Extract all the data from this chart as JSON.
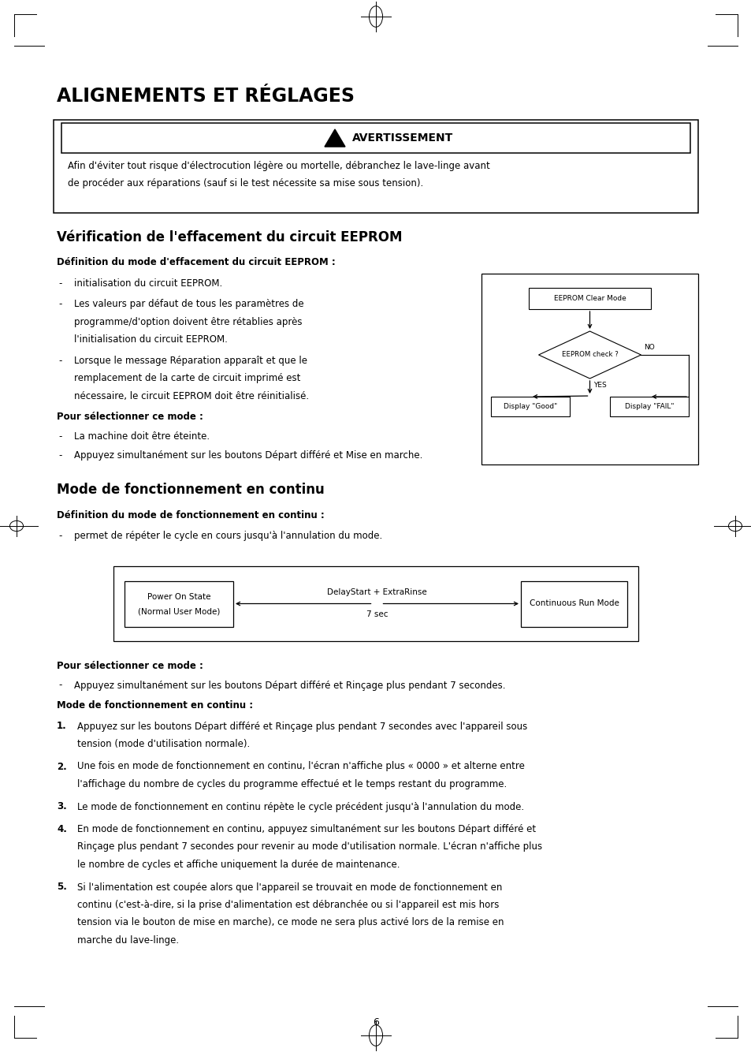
{
  "page_bg": "#ffffff",
  "page_width": 9.54,
  "page_height": 13.34,
  "ml": 0.72,
  "mr": 0.72,
  "title": "ALIGNEMENTS ET RÉGLAGES",
  "warning_box_text": "AVERTISSEMENT",
  "warning_body_1": "Afin d'éviter tout risque d'électrocution légère ou mortelle, débranchez le lave-linge avant",
  "warning_body_2": "de procéder aux réparations (sauf si le test nécessite sa mise sous tension).",
  "section1_title": "Vérification de l'effacement du circuit EEPROM",
  "section1_sub1": "Définition du mode d'effacement du circuit EEPROM :",
  "section1_b1": "initialisation du circuit EEPROM.",
  "section1_b2a": "Les valeurs par défaut de tous les paramètres de",
  "section1_b2b": "programme/d'option doivent être rétablies après",
  "section1_b2c": "l'initialisation du circuit EEPROM.",
  "section1_b3a": "Lorsque le message Réparation apparaît et que le",
  "section1_b3b": "remplacement de la carte de circuit imprimé est",
  "section1_b3c": "nécessaire, le circuit EEPROM doit être réinitialisé.",
  "section1_sub2": "Pour sélectionner ce mode :",
  "section1_c1": "La machine doit être éteinte.",
  "section1_c2": "Appuyez simultanément sur les boutons Départ différé et Mise en marche.",
  "eeprom_box1": "EEPROM Clear Mode",
  "eeprom_diamond": "EEPROM check ?",
  "eeprom_no": "NO",
  "eeprom_yes": "YES",
  "eeprom_good": "Display \"Good\"",
  "eeprom_fail": "Display \"FAIL\"",
  "section2_title": "Mode de fonctionnement en continu",
  "section2_sub1": "Définition du mode de fonctionnement en continu :",
  "section2_b1": "permet de répéter le cycle en cours jusqu'à l'annulation du mode.",
  "flow_left": "Power On State\n(Normal User Mode)",
  "flow_mid1": "DelayStart + ExtraRinse",
  "flow_mid2": "7 sec",
  "flow_right": "Continuous Run Mode",
  "section2_sub2": "Pour sélectionner ce mode :",
  "section2_c1": "Appuyez simultanément sur les boutons Départ différé et Rinçage plus pendant 7 secondes.",
  "section2_sub3": "Mode de fonctionnement en continu :",
  "n1a": "Appuyez sur les boutons Départ différé et Rinçage plus pendant 7 secondes avec l'appareil sous",
  "n1b": "tension (mode d'utilisation normale).",
  "n2a": "Une fois en mode de fonctionnement en continu, l'écran n'affiche plus « 0000 » et alterne entre",
  "n2b": "l'affichage du nombre de cycles du programme effectué et le temps restant du programme.",
  "n3": "Le mode de fonctionnement en continu répète le cycle précédent jusqu'à l'annulation du mode.",
  "n4a": "En mode de fonctionnement en continu, appuyez simultanément sur les boutons Départ différé et",
  "n4b": "Rinçage plus pendant 7 secondes pour revenir au mode d'utilisation normale. L'écran n'affiche plus",
  "n4c": "le nombre de cycles et affiche uniquement la durée de maintenance.",
  "n5a": "Si l'alimentation est coupée alors que l'appareil se trouvait en mode de fonctionnement en",
  "n5b": "continu (c'est-à-dire, si la prise d'alimentation est débranchée ou si l'appareil est mis hors",
  "n5c": "tension via le bouton de mise en marche), ce mode ne sera plus activé lors de la remise en",
  "n5d": "marche du lave-linge.",
  "page_number": "6"
}
